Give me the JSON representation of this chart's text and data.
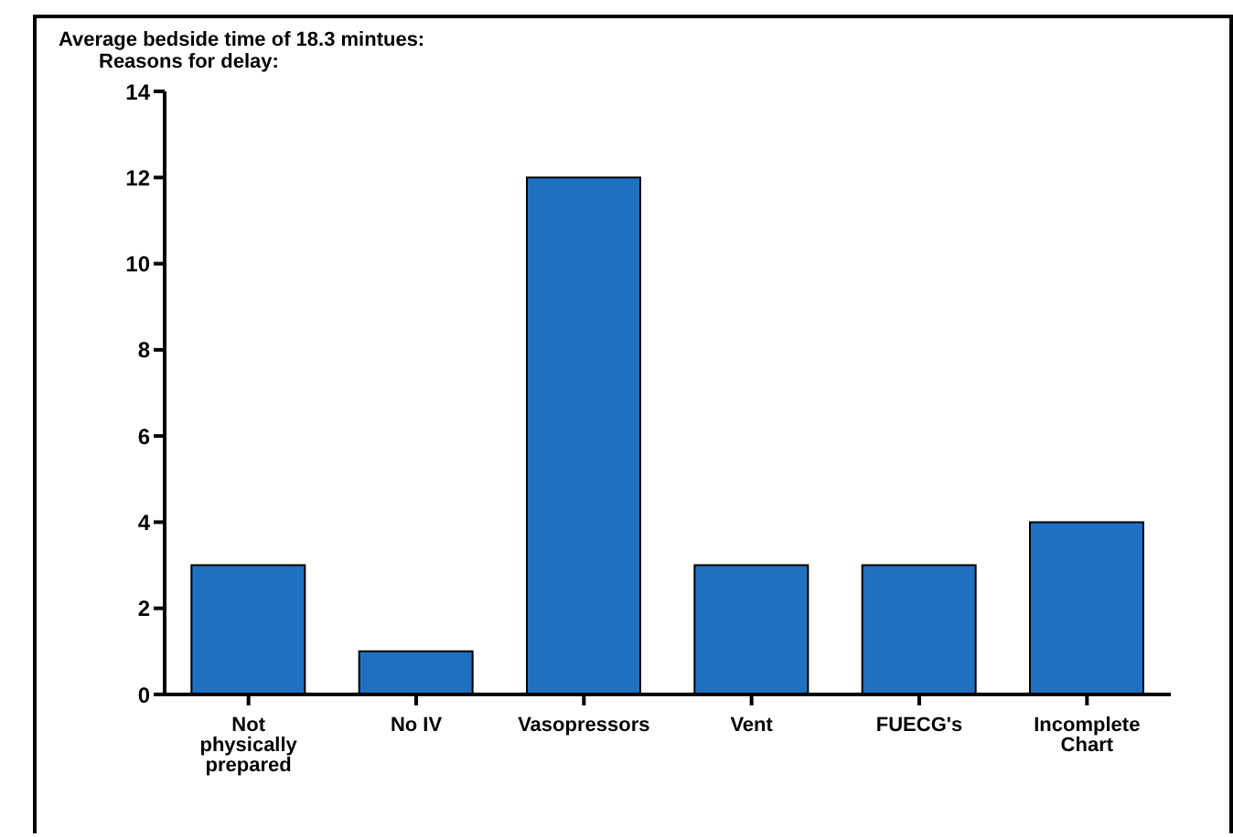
{
  "chart_data": {
    "type": "bar",
    "title": "Average bedside time of 18.3 mintues:",
    "subtitle": "Reasons for delay:",
    "categories": [
      "Not physically prepared",
      "No IV",
      "Vasopressors",
      "Vent",
      "FUECG's",
      "Incomplete Chart"
    ],
    "values": [
      3,
      1,
      12,
      3,
      3,
      4
    ],
    "color": "#1f70c1",
    "ylim": [
      0,
      14
    ],
    "yticks": [
      0,
      2,
      4,
      6,
      8,
      10,
      12,
      14
    ],
    "grid": false,
    "legend": false
  }
}
